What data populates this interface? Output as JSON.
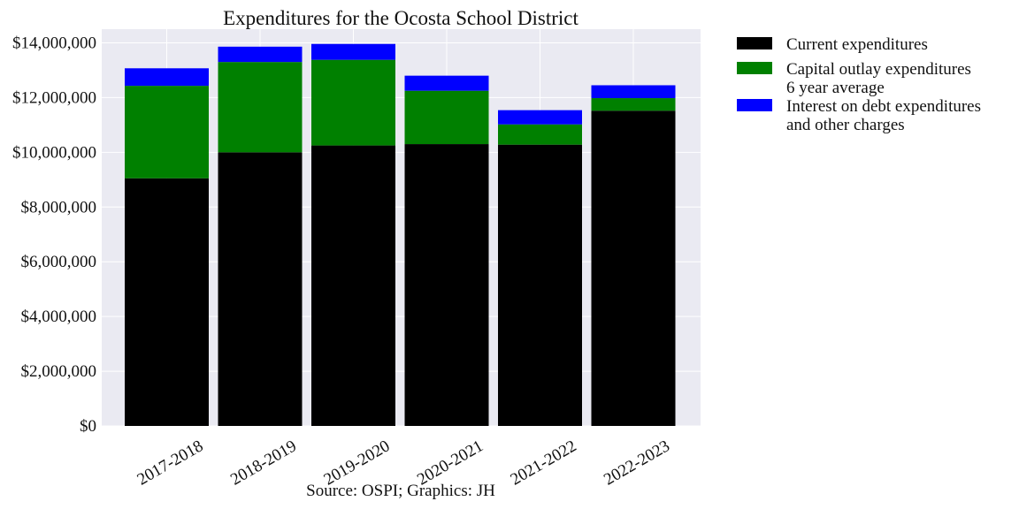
{
  "chart_data": {
    "type": "bar",
    "stacked": true,
    "title": "Expenditures for the Ocosta School District",
    "source": "Source: OSPI; Graphics: JH",
    "xlabel": "",
    "ylabel": "",
    "ylim": [
      0,
      14500000
    ],
    "yticks": [
      0,
      2000000,
      4000000,
      6000000,
      8000000,
      10000000,
      12000000,
      14000000
    ],
    "ytick_labels": [
      "$0",
      "$2,000,000",
      "$4,000,000",
      "$6,000,000",
      "$8,000,000",
      "$10,000,000",
      "$12,000,000",
      "$14,000,000"
    ],
    "categories": [
      "2017-2018",
      "2018-2019",
      "2019-2020",
      "2020-2021",
      "2021-2022",
      "2022-2023"
    ],
    "grid": true,
    "legend_position": "outside-right-top",
    "series": [
      {
        "name": "Current expenditures",
        "color": "#000000",
        "values": [
          9050000,
          10000000,
          10250000,
          10300000,
          10280000,
          11520000
        ]
      },
      {
        "name": "Capital outlay expenditures\n6 year average",
        "color": "#008000",
        "values": [
          3380000,
          3300000,
          3130000,
          1950000,
          740000,
          460000
        ]
      },
      {
        "name": "Interest on debt expenditures\nand other charges",
        "color": "#0000ff",
        "values": [
          640000,
          560000,
          580000,
          550000,
          520000,
          470000
        ]
      }
    ]
  }
}
